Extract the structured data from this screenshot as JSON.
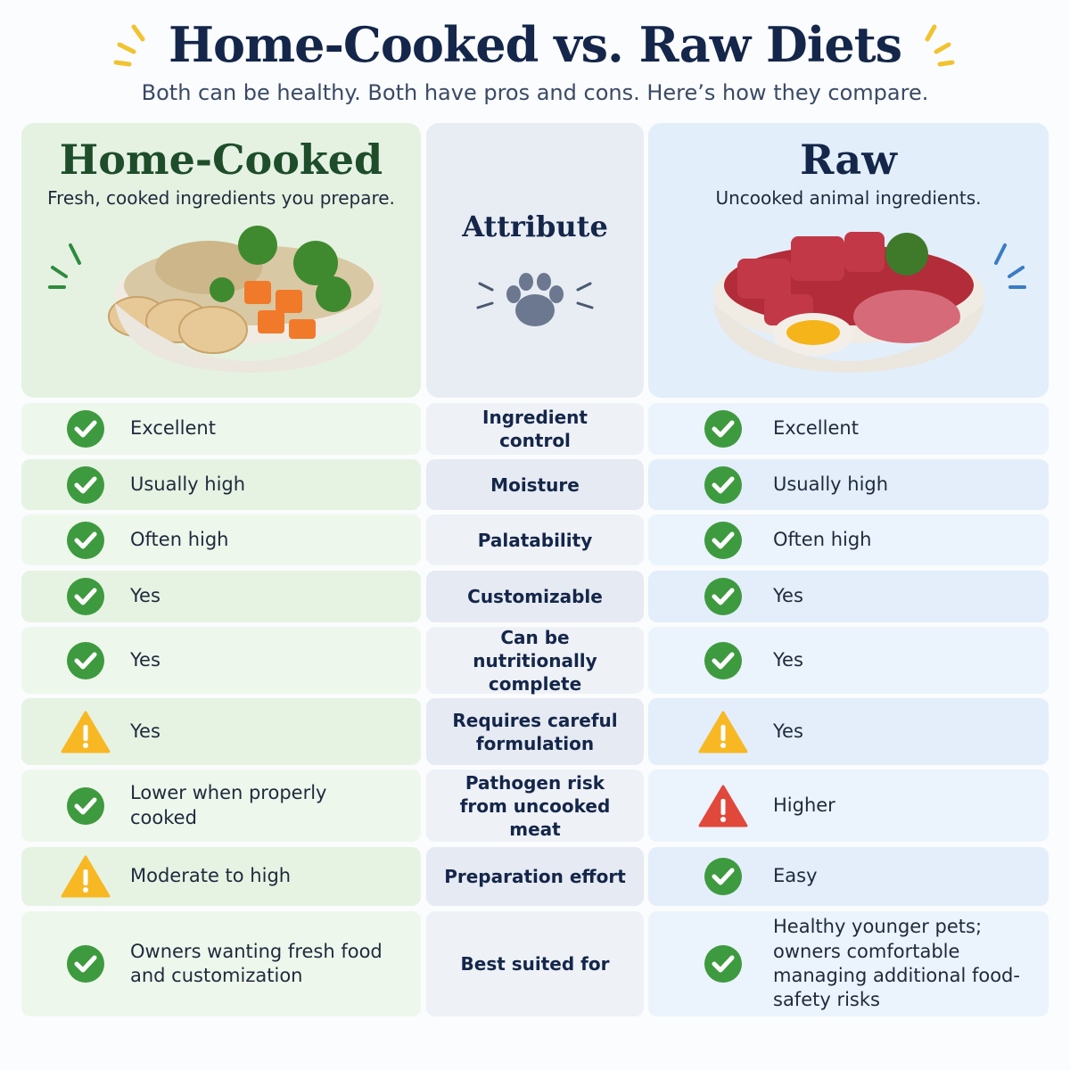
{
  "header": {
    "title": "Home-Cooked vs. Raw Diets",
    "subtitle": "Both can be healthy. Both have pros and cons. Here’s how they compare."
  },
  "columns": {
    "home": {
      "title": "Home-Cooked",
      "subtitle": "Fresh, cooked ingredients you prepare."
    },
    "attribute": {
      "title": "Attribute"
    },
    "raw": {
      "title": "Raw",
      "subtitle": "Uncooked animal ingredients."
    }
  },
  "table": {
    "rows": [
      {
        "attribute": "Ingredient control",
        "home": {
          "icon": "check",
          "text": "Excellent"
        },
        "raw": {
          "icon": "check",
          "text": "Excellent"
        }
      },
      {
        "attribute": "Moisture",
        "home": {
          "icon": "check",
          "text": "Usually high"
        },
        "raw": {
          "icon": "check",
          "text": "Usually high"
        }
      },
      {
        "attribute": "Palatability",
        "home": {
          "icon": "check",
          "text": "Often high"
        },
        "raw": {
          "icon": "check",
          "text": "Often high"
        }
      },
      {
        "attribute": "Customizable",
        "home": {
          "icon": "check",
          "text": "Yes"
        },
        "raw": {
          "icon": "check",
          "text": "Yes"
        }
      },
      {
        "attribute": "Can be nutritionally complete",
        "home": {
          "icon": "check",
          "text": "Yes"
        },
        "raw": {
          "icon": "check",
          "text": "Yes"
        }
      },
      {
        "attribute": "Requires careful formulation",
        "home": {
          "icon": "warning",
          "text": "Yes"
        },
        "raw": {
          "icon": "warning",
          "text": "Yes"
        }
      },
      {
        "attribute": "Pathogen risk from uncooked meat",
        "home": {
          "icon": "check",
          "text": "Lower when properly cooked"
        },
        "raw": {
          "icon": "danger",
          "text": "Higher"
        }
      },
      {
        "attribute": "Preparation effort",
        "home": {
          "icon": "warning",
          "text": "Moderate to high"
        },
        "raw": {
          "icon": "check",
          "text": "Easy"
        }
      },
      {
        "attribute": "Best suited for",
        "home": {
          "icon": "check",
          "text": "Owners wanting fresh food and customization"
        },
        "raw": {
          "icon": "check",
          "text": "Healthy younger pets; owners comfortable managing additional food-safety risks"
        }
      }
    ]
  }
}
